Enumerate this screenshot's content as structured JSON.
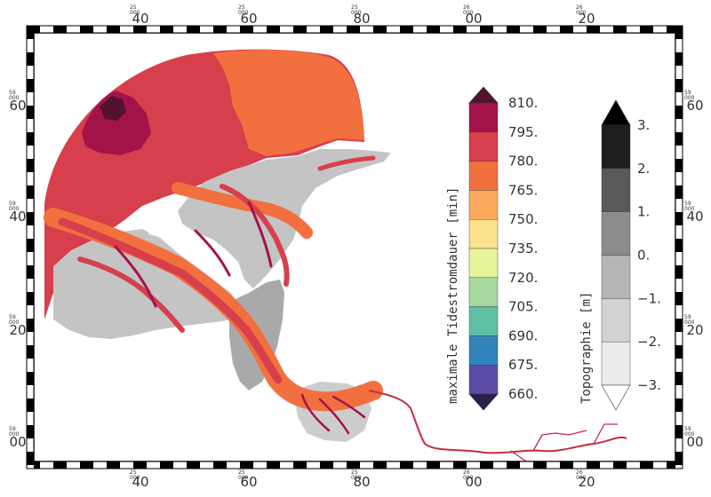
{
  "frame": {
    "x_ticks": [
      {
        "major": "40",
        "minor": "25\n000"
      },
      {
        "major": "60",
        "minor": "25\n000"
      },
      {
        "major": "80",
        "minor": "25\n000"
      },
      {
        "major": "00",
        "minor": "26\n000"
      },
      {
        "major": "20",
        "minor": "26\n000"
      }
    ],
    "y_ticks": [
      {
        "major": "60",
        "minor": "59\n000"
      },
      {
        "major": "40",
        "minor": "59\n000"
      },
      {
        "major": "20",
        "minor": "59\n000"
      },
      {
        "major": "00",
        "minor": "59\n000"
      }
    ]
  },
  "colorbar_duration": {
    "title": "maximale Tidestromdauer [min]",
    "labels": [
      "810.",
      "795.",
      "780.",
      "765.",
      "750.",
      "735.",
      "720.",
      "705.",
      "690.",
      "675.",
      "660."
    ],
    "colors": [
      "#53122f",
      "#a3134a",
      "#d63f4b",
      "#f2703f",
      "#fcaa5d",
      "#fde08c",
      "#e6f49a",
      "#a7d89f",
      "#5fbfa4",
      "#3384bd",
      "#5c4ba6",
      "#2a1f4a"
    ]
  },
  "colorbar_topo": {
    "title": "Topographie [m]",
    "labels": [
      "3.",
      "2.",
      "1.",
      "0.",
      "−1.",
      "−2.",
      "−3."
    ],
    "colors": [
      "#000000",
      "#1e1e1e",
      "#595959",
      "#8c8c8c",
      "#b5b5b5",
      "#d2d2d2",
      "#ececec",
      "#ffffff"
    ]
  },
  "map_colors": {
    "water_main": "#d63f4b",
    "water_orange": "#f2703f",
    "water_dark": "#a3134a",
    "water_darkest": "#53122f",
    "flat_gray": "#c4c4c4",
    "flat_dark": "#8c8c8c",
    "flat_light": "#dcdcdc"
  }
}
